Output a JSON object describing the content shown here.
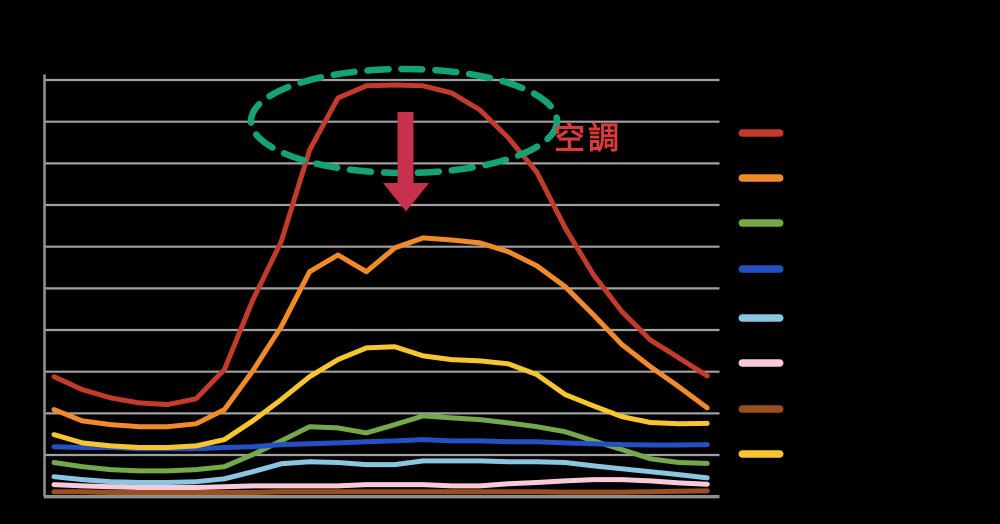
{
  "background_color": "#000000",
  "chart_frame": {
    "grid_color": "#A0A0A0",
    "axis_color": "#8F8F8F",
    "y_gridline_count": 11,
    "x_tick_labels": [],
    "y_tick_labels": []
  },
  "chart_data": {
    "type": "line",
    "title": "",
    "xlabel": "",
    "ylabel": "",
    "x_count": 24,
    "ylim": [
      0,
      10
    ],
    "gridline_interval": 1,
    "legend_position": "right",
    "series": [
      {
        "id": "aircon",
        "label": "空調",
        "color": "#C23B2B",
        "values": [
          2.88,
          2.57,
          2.37,
          2.25,
          2.21,
          2.35,
          3.05,
          4.72,
          6.12,
          8.32,
          9.57,
          9.86,
          9.88,
          9.86,
          9.69,
          9.28,
          8.61,
          7.79,
          6.45,
          5.32,
          4.44,
          3.76,
          3.33,
          2.9
        ]
      },
      {
        "id": "orange",
        "label": "",
        "color": "#F18A28",
        "values": [
          2.09,
          1.82,
          1.73,
          1.68,
          1.68,
          1.75,
          2.09,
          3.02,
          4.08,
          5.4,
          5.8,
          5.4,
          5.97,
          6.21,
          6.16,
          6.09,
          5.88,
          5.54,
          5.04,
          4.36,
          3.65,
          3.12,
          2.64,
          2.13
        ]
      },
      {
        "id": "green",
        "label": "",
        "color": "#74A84B",
        "values": [
          0.82,
          0.72,
          0.65,
          0.62,
          0.62,
          0.65,
          0.72,
          1.01,
          1.34,
          1.68,
          1.65,
          1.53,
          1.73,
          1.94,
          1.89,
          1.85,
          1.77,
          1.68,
          1.56,
          1.34,
          1.13,
          0.91,
          0.82,
          0.8
        ]
      },
      {
        "id": "blue",
        "label": "",
        "color": "#2351C3",
        "values": [
          1.2,
          1.18,
          1.18,
          1.15,
          1.15,
          1.15,
          1.18,
          1.2,
          1.25,
          1.27,
          1.29,
          1.32,
          1.34,
          1.37,
          1.34,
          1.34,
          1.32,
          1.32,
          1.29,
          1.27,
          1.25,
          1.24,
          1.24,
          1.25
        ]
      },
      {
        "id": "light_blue",
        "label": "",
        "color": "#8AC6E2",
        "values": [
          0.48,
          0.41,
          0.36,
          0.34,
          0.34,
          0.36,
          0.43,
          0.6,
          0.79,
          0.84,
          0.82,
          0.77,
          0.77,
          0.86,
          0.86,
          0.86,
          0.84,
          0.84,
          0.82,
          0.74,
          0.67,
          0.6,
          0.53,
          0.45
        ]
      },
      {
        "id": "pink",
        "label": "",
        "color": "#F9C9DA",
        "values": [
          0.29,
          0.26,
          0.24,
          0.22,
          0.22,
          0.22,
          0.24,
          0.26,
          0.26,
          0.26,
          0.26,
          0.29,
          0.29,
          0.29,
          0.26,
          0.26,
          0.31,
          0.34,
          0.38,
          0.41,
          0.41,
          0.38,
          0.33,
          0.3
        ]
      },
      {
        "id": "brown",
        "label": "",
        "color": "#9C4F1E",
        "values": [
          0.12,
          0.12,
          0.1,
          0.1,
          0.1,
          0.1,
          0.1,
          0.1,
          0.12,
          0.12,
          0.12,
          0.12,
          0.12,
          0.12,
          0.12,
          0.12,
          0.12,
          0.12,
          0.11,
          0.11,
          0.11,
          0.12,
          0.13,
          0.14
        ]
      },
      {
        "id": "yellow",
        "label": "",
        "color": "#F7C52F",
        "values": [
          1.49,
          1.29,
          1.22,
          1.18,
          1.18,
          1.22,
          1.37,
          1.82,
          2.33,
          2.88,
          3.29,
          3.57,
          3.6,
          3.38,
          3.29,
          3.26,
          3.19,
          2.93,
          2.45,
          2.18,
          1.92,
          1.78,
          1.75,
          1.76
        ]
      }
    ]
  },
  "legend": {
    "items": [
      {
        "id": "aircon",
        "color": "#C23B2B",
        "label": ""
      },
      {
        "id": "orange",
        "color": "#F18A28",
        "label": ""
      },
      {
        "id": "green",
        "color": "#74A84B",
        "label": ""
      },
      {
        "id": "blue",
        "color": "#2351C3",
        "label": ""
      },
      {
        "id": "light_blue",
        "color": "#8AC6E2",
        "label": ""
      },
      {
        "id": "pink",
        "color": "#F9C9DA",
        "label": ""
      },
      {
        "id": "brown",
        "color": "#9C4F1E",
        "label": ""
      },
      {
        "id": "yellow",
        "color": "#F7C52F",
        "label": ""
      }
    ]
  },
  "annotation": {
    "label": "空調",
    "label_color": "#D93A3A",
    "ellipse_color": "#14A278",
    "arrow_color": "#C8314D"
  }
}
